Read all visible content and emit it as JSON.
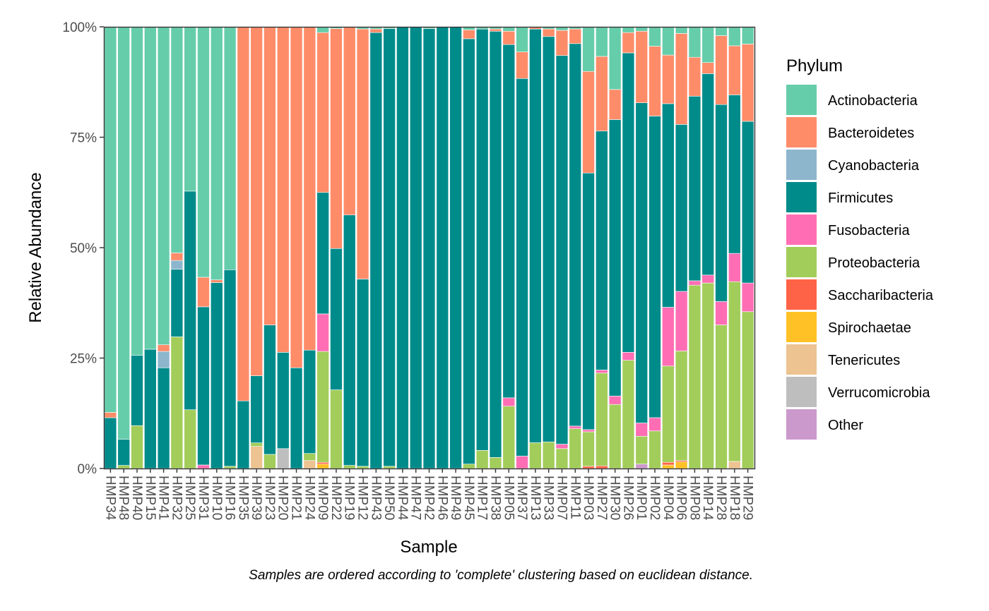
{
  "chart_data": {
    "type": "bar",
    "stacked": true,
    "xlabel": "Sample",
    "ylabel": "Relative Abundance",
    "ylim": [
      0,
      1
    ],
    "yticks": [
      0,
      0.25,
      0.5,
      0.75,
      1
    ],
    "ytick_labels": [
      "0%",
      "25%",
      "50%",
      "75%",
      "100%"
    ],
    "grid": false,
    "legend_position": "right",
    "legend_title": "Phylum",
    "caption": "Samples are ordered according to 'complete' clustering based on euclidean distance.",
    "categories": [
      "HMP34",
      "HMP48",
      "HMP40",
      "HMP15",
      "HMP41",
      "HMP32",
      "HMP25",
      "HMP31",
      "HMP10",
      "HMP16",
      "HMP35",
      "HMP39",
      "HMP23",
      "HMP20",
      "HMP21",
      "HMP24",
      "HMP09",
      "HMP22",
      "HMP19",
      "HMP12",
      "HMP43",
      "HMP50",
      "HMP44",
      "HMP47",
      "HMP42",
      "HMP46",
      "HMP49",
      "HMP45",
      "HMP17",
      "HMP38",
      "HMP05",
      "HMP37",
      "HMP13",
      "HMP33",
      "HMP07",
      "HMP11",
      "HMP03",
      "HMP27",
      "HMP30",
      "HMP26",
      "HMP01",
      "HMP02",
      "HMP04",
      "HMP06",
      "HMP08",
      "HMP14",
      "HMP28",
      "HMP18",
      "HMP29"
    ],
    "series": [
      {
        "name": "Other",
        "color": "#cc99cc",
        "values": [
          0,
          0,
          0,
          0,
          0,
          0,
          0,
          0,
          0,
          0,
          0,
          0,
          0,
          0,
          0,
          0,
          0,
          0,
          0,
          0,
          0,
          0,
          0,
          0,
          0,
          0,
          0,
          0,
          0,
          0,
          0,
          0,
          0,
          0,
          0,
          0,
          0,
          0,
          0,
          0,
          0.01,
          0,
          0,
          0,
          0,
          0,
          0,
          0,
          0
        ]
      },
      {
        "name": "Verrucomicrobia",
        "color": "#bebebe",
        "values": [
          0,
          0,
          0,
          0,
          0,
          0,
          0,
          0,
          0,
          0,
          0,
          0,
          0,
          0.045,
          0,
          0,
          0,
          0,
          0,
          0,
          0,
          0,
          0,
          0,
          0,
          0,
          0,
          0,
          0,
          0,
          0,
          0,
          0,
          0,
          0,
          0,
          0,
          0,
          0,
          0,
          0,
          0,
          0,
          0,
          0,
          0,
          0,
          0,
          0
        ]
      },
      {
        "name": "Tenericutes",
        "color": "#edc391",
        "values": [
          0,
          0,
          0,
          0,
          0,
          0,
          0,
          0,
          0,
          0,
          0,
          0.05,
          0,
          0,
          0,
          0.018,
          0,
          0,
          0,
          0,
          0,
          0,
          0,
          0,
          0,
          0,
          0,
          0,
          0,
          0,
          0,
          0,
          0,
          0,
          0,
          0,
          0,
          0,
          0,
          0,
          0,
          0,
          0,
          0,
          0,
          0,
          0,
          0.016,
          0
        ]
      },
      {
        "name": "Spirochaetae",
        "color": "#ffc125",
        "values": [
          0,
          0,
          0,
          0,
          0,
          0,
          0,
          0,
          0,
          0,
          0,
          0,
          0,
          0,
          0,
          0,
          0.01,
          0,
          0,
          0,
          0,
          0,
          0,
          0,
          0,
          0,
          0,
          0,
          0,
          0,
          0,
          0,
          0,
          0,
          0,
          0,
          0,
          0,
          0,
          0,
          0,
          0,
          0.008,
          0.015,
          0,
          0,
          0,
          0,
          0
        ]
      },
      {
        "name": "Saccharibacteria",
        "color": "#ff6347",
        "values": [
          0,
          0,
          0,
          0,
          0,
          0,
          0,
          0,
          0,
          0,
          0,
          0,
          0,
          0,
          0,
          0,
          0.004,
          0,
          0,
          0,
          0,
          0,
          0,
          0,
          0,
          0,
          0,
          0,
          0,
          0,
          0,
          0,
          0,
          0,
          0,
          0,
          0.005,
          0.006,
          0,
          0,
          0,
          0,
          0.006,
          0.003,
          0,
          0,
          0,
          0,
          0
        ]
      },
      {
        "name": "Proteobacteria",
        "color": "#a2cd5a",
        "values": [
          0,
          0.007,
          0.097,
          0,
          0,
          0.298,
          0.133,
          0,
          0,
          0.005,
          0,
          0.008,
          0.032,
          0,
          0,
          0.016,
          0.251,
          0.178,
          0.007,
          0.005,
          0,
          0.005,
          0,
          0,
          0,
          0,
          0,
          0.01,
          0.041,
          0.025,
          0.141,
          0,
          0.058,
          0.06,
          0.045,
          0.09,
          0.078,
          0.21,
          0.145,
          0.245,
          0.063,
          0.085,
          0.218,
          0.248,
          0.415,
          0.42,
          0.325,
          0.407,
          0.355
        ]
      },
      {
        "name": "Fusobacteria",
        "color": "#ff6eb4",
        "values": [
          0,
          0,
          0,
          0,
          0,
          0,
          0,
          0.008,
          0,
          0,
          0,
          0,
          0,
          0,
          0,
          0,
          0.085,
          0,
          0,
          0,
          0,
          0,
          0,
          0,
          0,
          0,
          0,
          0,
          0,
          0,
          0.019,
          0.028,
          0,
          0,
          0.01,
          0.006,
          0.005,
          0.007,
          0.019,
          0.018,
          0.03,
          0.03,
          0.133,
          0.135,
          0.01,
          0.018,
          0.053,
          0.064,
          0.065
        ]
      },
      {
        "name": "Firmicutes",
        "color": "#008b8b",
        "values": [
          0.115,
          0.059,
          0.159,
          0.27,
          0.228,
          0.153,
          0.495,
          0.358,
          0.421,
          0.445,
          0.153,
          0.152,
          0.293,
          0.218,
          0.228,
          0.234,
          0.275,
          0.32,
          0.567,
          0.424,
          0.987,
          0.991,
          1.0,
          1.0,
          0.996,
          1.0,
          1.0,
          0.963,
          0.954,
          0.965,
          0.8,
          0.855,
          0.932,
          0.918,
          0.88,
          0.866,
          0.581,
          0.541,
          0.626,
          0.678,
          0.725,
          0.683,
          0.461,
          0.378,
          0.418,
          0.456,
          0.446,
          0.359,
          0.366
        ]
      },
      {
        "name": "Cyanobacteria",
        "color": "#8db6cd",
        "values": [
          0,
          0,
          0,
          0,
          0.037,
          0.02,
          0,
          0,
          0,
          0,
          0,
          0,
          0,
          0,
          0,
          0,
          0,
          0,
          0,
          0,
          0,
          0,
          0,
          0,
          0,
          0,
          0,
          0,
          0,
          0,
          0,
          0,
          0,
          0,
          0,
          0,
          0,
          0,
          0,
          0,
          0,
          0,
          0,
          0,
          0,
          0,
          0,
          0,
          0
        ]
      },
      {
        "name": "Bacteroidetes",
        "color": "#ff8c69",
        "values": [
          0.012,
          0,
          0,
          0,
          0.015,
          0.017,
          0,
          0.067,
          0.006,
          0,
          0.847,
          0.79,
          0.675,
          0.737,
          0.772,
          0.732,
          0.362,
          0.498,
          0.426,
          0.566,
          0.008,
          0,
          0,
          0,
          0,
          0,
          0,
          0.02,
          0,
          0.005,
          0.03,
          0.06,
          0.005,
          0.017,
          0.057,
          0.033,
          0.23,
          0.169,
          0.068,
          0.046,
          0.162,
          0.158,
          0.11,
          0.206,
          0.088,
          0.025,
          0.156,
          0.111,
          0.175
        ]
      },
      {
        "name": "Actinobacteria",
        "color": "#66cdaa",
        "values": [
          0.873,
          0.934,
          0.744,
          0.73,
          0.72,
          0.512,
          0.372,
          0.567,
          0.573,
          0.55,
          0,
          0,
          0,
          0,
          0,
          0,
          0.013,
          0.004,
          0,
          0.005,
          0.005,
          0.004,
          0,
          0,
          0.004,
          0,
          0,
          0.007,
          0.005,
          0.005,
          0.01,
          0.057,
          0,
          0.005,
          0.008,
          0.005,
          0.101,
          0.067,
          0.142,
          0.013,
          0.01,
          0.044,
          0.064,
          0.015,
          0.069,
          0.081,
          0.02,
          0.043,
          0.039
        ]
      }
    ],
    "legend_order": [
      "Actinobacteria",
      "Bacteroidetes",
      "Cyanobacteria",
      "Firmicutes",
      "Fusobacteria",
      "Proteobacteria",
      "Saccharibacteria",
      "Spirochaetae",
      "Tenericutes",
      "Verrucomicrobia",
      "Other"
    ]
  }
}
